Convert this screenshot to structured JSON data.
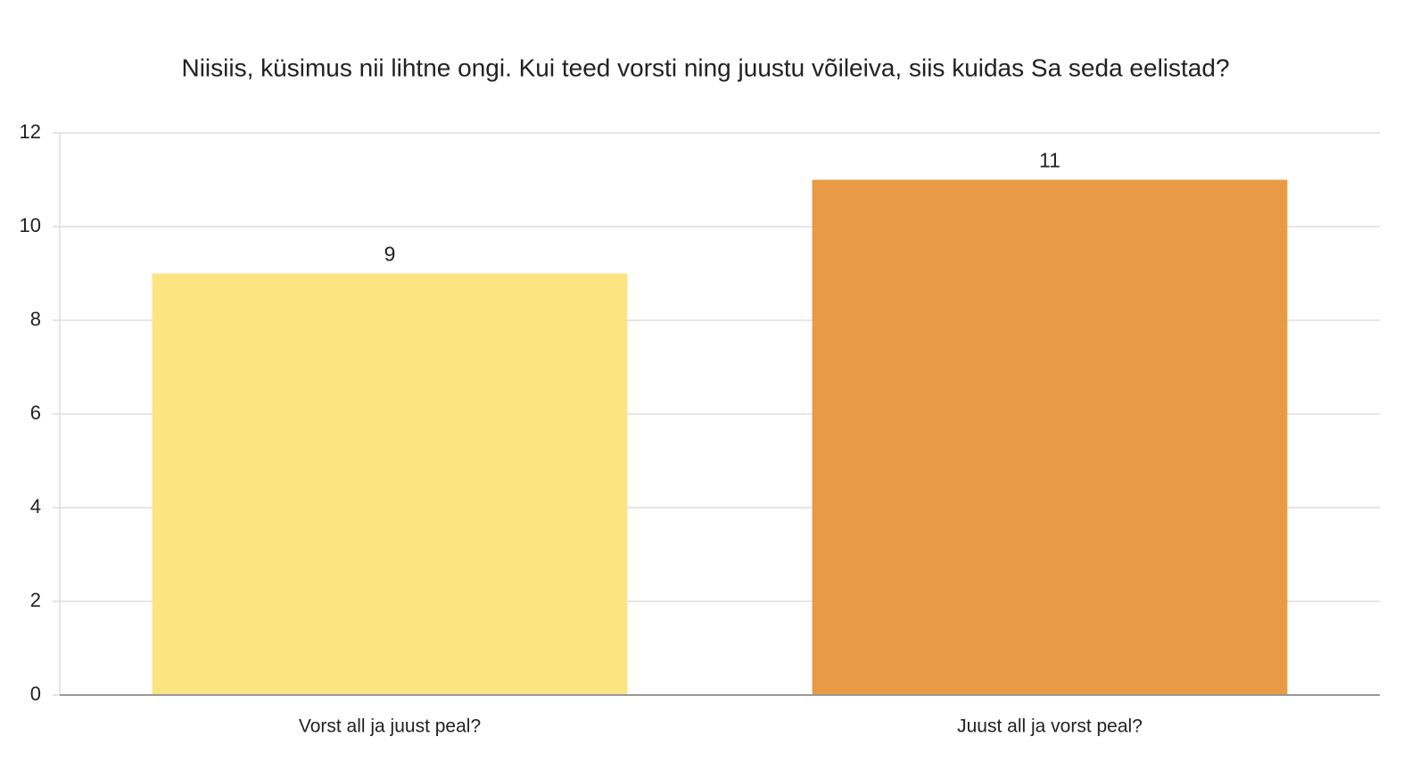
{
  "chart_data": {
    "type": "bar",
    "title": "Niisiis, küsimus nii lihtne ongi. Kui teed vorsti ning juustu võileiva, siis kuidas Sa seda eelistad?",
    "categories": [
      "Vorst all ja juust peal?",
      "Juust all ja vorst peal?"
    ],
    "values": [
      9,
      11
    ],
    "colors": [
      "#fbe482",
      "#e99a45"
    ],
    "ylim": [
      0,
      12
    ],
    "yticks": [
      0,
      2,
      4,
      6,
      8,
      10,
      12
    ],
    "grid": true
  }
}
